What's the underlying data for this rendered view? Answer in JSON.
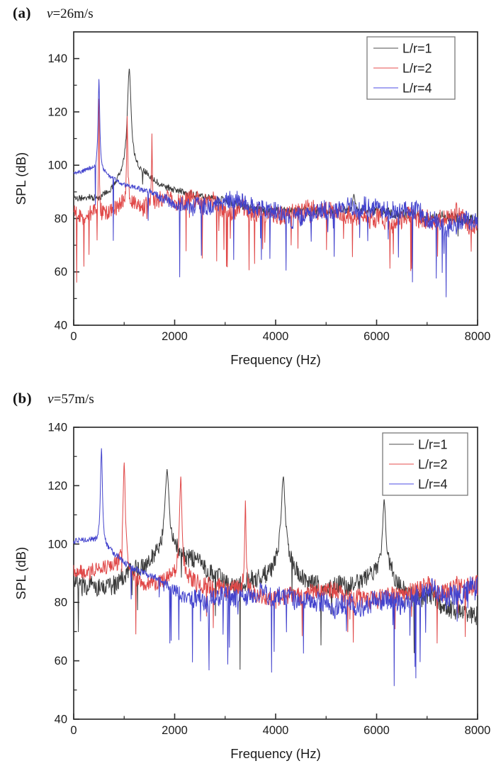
{
  "figure": {
    "background": "#ffffff",
    "text_color": "#1c1c1c",
    "axis_color": "#2e2e2e"
  },
  "panels": [
    {
      "label": "(a)",
      "var": "v",
      "value": "=26m/s"
    },
    {
      "label": "(b)",
      "var": "v",
      "value": "=57m/s"
    }
  ],
  "chart_data": [
    {
      "type": "line",
      "panel": "a",
      "condition": "v=26m/s",
      "xlabel": "Frequency (Hz)",
      "ylabel": "SPL (dB)",
      "xlim": [
        0,
        8000
      ],
      "ylim": [
        40,
        150
      ],
      "x_major_ticks": [
        0,
        2000,
        4000,
        6000,
        8000
      ],
      "x_minor_step": 1000,
      "y_major_ticks": [
        40,
        60,
        80,
        100,
        120,
        140
      ],
      "y_minor_step": 10,
      "grid": false,
      "legend_position": "top-right",
      "series": [
        {
          "name": "L/r=1",
          "color": "#3b3b3b",
          "legend_color": "#a6a6a6",
          "seed": 11,
          "peaks": [
            {
              "x": 1100,
              "y": 136,
              "w": 45
            },
            {
              "x": 5550,
              "y": 89,
              "w": 30
            }
          ],
          "baseline": [
            [
              0,
              88
            ],
            [
              500,
              87
            ],
            [
              800,
              91
            ],
            [
              1100,
              99
            ],
            [
              1400,
              97
            ],
            [
              1700,
              93
            ],
            [
              2000,
              91
            ],
            [
              2500,
              88
            ],
            [
              3000,
              86
            ],
            [
              3500,
              84.5
            ],
            [
              4000,
              83.5
            ],
            [
              4500,
              83
            ],
            [
              5000,
              82.5
            ],
            [
              5500,
              82
            ],
            [
              6000,
              81.5
            ],
            [
              7000,
              80.5
            ],
            [
              8000,
              80
            ]
          ],
          "noise": [
            [
              0,
              1.2
            ],
            [
              2000,
              1.2
            ],
            [
              3000,
              1.5
            ],
            [
              8000,
              1.8
            ]
          ],
          "dip_rate": 0.004,
          "dip_max": 6,
          "dips": []
        },
        {
          "name": "L/r=2",
          "color": "#e04848",
          "legend_color": "#f2a6a6",
          "seed": 22,
          "peaks": [
            {
              "x": 500,
              "y": 126,
              "w": 9
            },
            {
              "x": 1060,
              "y": 118,
              "w": 14
            },
            {
              "x": 1550,
              "y": 112,
              "w": 9
            }
          ],
          "baseline": [
            [
              0,
              84
            ],
            [
              400,
              84
            ],
            [
              800,
              85
            ],
            [
              1100,
              86
            ],
            [
              1500,
              84
            ],
            [
              2000,
              83
            ],
            [
              2600,
              82
            ],
            [
              3200,
              81.5
            ],
            [
              4000,
              80.5
            ],
            [
              5000,
              80
            ],
            [
              6000,
              79.5
            ],
            [
              7000,
              79.5
            ],
            [
              8000,
              80
            ]
          ],
          "noise": [
            [
              0,
              3.2
            ],
            [
              8000,
              3.6
            ]
          ],
          "dip_rate": 0.035,
          "dip_max": 20,
          "dips": [
            {
              "x": 60,
              "y": 56
            }
          ]
        },
        {
          "name": "L/r=4",
          "color": "#4343cd",
          "legend_color": "#a6a6f2",
          "seed": 33,
          "peaks": [
            {
              "x": 500,
              "y": 132,
              "w": 20
            }
          ],
          "baseline": [
            [
              0,
              97
            ],
            [
              300,
              98
            ],
            [
              600,
              96.5
            ],
            [
              900,
              93.5
            ],
            [
              1200,
              91
            ],
            [
              1500,
              89
            ],
            [
              1800,
              87
            ],
            [
              2100,
              85
            ],
            [
              2500,
              84
            ],
            [
              3000,
              83
            ],
            [
              3500,
              82
            ],
            [
              4000,
              81
            ],
            [
              5000,
              80
            ],
            [
              6000,
              79
            ],
            [
              7000,
              78.5
            ],
            [
              8000,
              78.5
            ]
          ],
          "noise": [
            [
              0,
              0.7
            ],
            [
              1400,
              0.9
            ],
            [
              1900,
              2.2
            ],
            [
              2400,
              3.3
            ],
            [
              8000,
              3.6
            ]
          ],
          "dip_rate": 0.03,
          "dip_max": 22,
          "dips": [
            {
              "x": 2100,
              "y": 58
            }
          ]
        }
      ]
    },
    {
      "type": "line",
      "panel": "b",
      "condition": "v=57m/s",
      "xlabel": "Frequency (Hz)",
      "ylabel": "SPL (dB)",
      "xlim": [
        0,
        8000
      ],
      "ylim": [
        40,
        140
      ],
      "x_major_ticks": [
        0,
        2000,
        4000,
        6000,
        8000
      ],
      "x_minor_step": 1000,
      "y_major_ticks": [
        40,
        60,
        80,
        100,
        120,
        140
      ],
      "y_minor_step": 10,
      "grid": false,
      "legend_position": "top-right",
      "series": [
        {
          "name": "L/r=1",
          "color": "#3b3b3b",
          "legend_color": "#a6a6a6",
          "seed": 44,
          "peaks": [
            {
              "x": 1850,
              "y": 125,
              "w": 50
            },
            {
              "x": 4150,
              "y": 123,
              "w": 45
            },
            {
              "x": 6150,
              "y": 115,
              "w": 40
            }
          ],
          "baseline": [
            [
              0,
              86
            ],
            [
              400,
              85
            ],
            [
              900,
              86
            ],
            [
              1400,
              91
            ],
            [
              1850,
              98
            ],
            [
              2300,
              91
            ],
            [
              2800,
              86
            ],
            [
              3300,
              85
            ],
            [
              3800,
              89
            ],
            [
              4150,
              97
            ],
            [
              4600,
              89
            ],
            [
              5100,
              85
            ],
            [
              5700,
              87
            ],
            [
              6150,
              92
            ],
            [
              6600,
              85
            ],
            [
              7200,
              83
            ],
            [
              8000,
              83
            ]
          ],
          "noise": [
            [
              0,
              3.2
            ],
            [
              8000,
              3.2
            ]
          ],
          "dip_rate": 0.012,
          "dip_max": 14,
          "dips": [
            {
              "x": 3300,
              "y": 57
            }
          ]
        },
        {
          "name": "L/r=2",
          "color": "#e04848",
          "legend_color": "#f2a6a6",
          "seed": 55,
          "peaks": [
            {
              "x": 1000,
              "y": 128,
              "w": 28
            },
            {
              "x": 2120,
              "y": 123,
              "w": 30
            },
            {
              "x": 3400,
              "y": 115,
              "w": 16
            }
          ],
          "baseline": [
            [
              0,
              91
            ],
            [
              400,
              92
            ],
            [
              800,
              93
            ],
            [
              1200,
              89
            ],
            [
              1600,
              87
            ],
            [
              2100,
              89
            ],
            [
              2600,
              85
            ],
            [
              3000,
              84
            ],
            [
              3400,
              85
            ],
            [
              3900,
              83
            ],
            [
              4500,
              82.5
            ],
            [
              5200,
              82
            ],
            [
              6000,
              82
            ],
            [
              7000,
              82
            ],
            [
              8000,
              82.5
            ]
          ],
          "noise": [
            [
              0,
              2.4
            ],
            [
              2600,
              3
            ],
            [
              8000,
              3.4
            ]
          ],
          "dip_rate": 0.02,
          "dip_max": 16,
          "dips": []
        },
        {
          "name": "L/r=4",
          "color": "#4343cd",
          "legend_color": "#a6a6f2",
          "seed": 66,
          "peaks": [
            {
              "x": 550,
              "y": 133,
              "w": 24
            }
          ],
          "baseline": [
            [
              0,
              101
            ],
            [
              350,
              102
            ],
            [
              700,
              98.5
            ],
            [
              1000,
              95
            ],
            [
              1300,
              92.5
            ],
            [
              1600,
              90
            ],
            [
              1900,
              87
            ],
            [
              2200,
              85
            ],
            [
              2600,
              83
            ],
            [
              3000,
              81.5
            ],
            [
              3500,
              80.5
            ],
            [
              4000,
              80
            ],
            [
              5000,
              79
            ],
            [
              6000,
              78.5
            ],
            [
              7000,
              78
            ],
            [
              8000,
              78
            ]
          ],
          "noise": [
            [
              0,
              0.8
            ],
            [
              1700,
              1.2
            ],
            [
              2300,
              3
            ],
            [
              8000,
              4
            ]
          ],
          "dip_rate": 0.035,
          "dip_max": 22,
          "dips": [
            {
              "x": 3920,
              "y": 56
            },
            {
              "x": 6780,
              "y": 54
            }
          ]
        }
      ]
    }
  ]
}
